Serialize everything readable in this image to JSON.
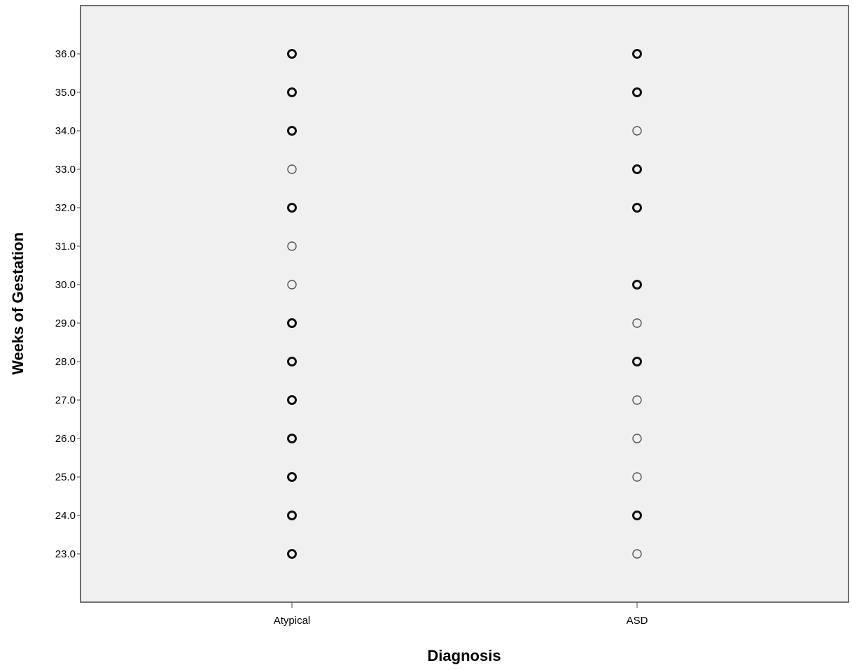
{
  "chart_data": {
    "type": "scatter",
    "title": "",
    "xlabel": "Diagnosis",
    "ylabel": "Weeks of Gestation",
    "categories": [
      "Atypical",
      "ASD"
    ],
    "ylim": [
      21.7,
      37.3
    ],
    "yticks": [
      "23.0",
      "24.0",
      "25.0",
      "26.0",
      "27.0",
      "28.0",
      "29.0",
      "30.0",
      "31.0",
      "32.0",
      "33.0",
      "34.0",
      "35.0",
      "36.0"
    ],
    "grid": false,
    "background_color": "#f0f0f0",
    "marker": "hollow-circle",
    "series": [
      {
        "category": "Atypical",
        "points": [
          {
            "y": 23,
            "multiple": true
          },
          {
            "y": 24,
            "multiple": true
          },
          {
            "y": 25,
            "multiple": true
          },
          {
            "y": 26,
            "multiple": true
          },
          {
            "y": 27,
            "multiple": true
          },
          {
            "y": 28,
            "multiple": true
          },
          {
            "y": 29,
            "multiple": true
          },
          {
            "y": 30,
            "multiple": false
          },
          {
            "y": 31,
            "multiple": false
          },
          {
            "y": 32,
            "multiple": true
          },
          {
            "y": 33,
            "multiple": false
          },
          {
            "y": 34,
            "multiple": true
          },
          {
            "y": 35,
            "multiple": true
          },
          {
            "y": 36,
            "multiple": true
          }
        ]
      },
      {
        "category": "ASD",
        "points": [
          {
            "y": 23,
            "multiple": false
          },
          {
            "y": 24,
            "multiple": true
          },
          {
            "y": 25,
            "multiple": false
          },
          {
            "y": 26,
            "multiple": false
          },
          {
            "y": 27,
            "multiple": false
          },
          {
            "y": 28,
            "multiple": true
          },
          {
            "y": 29,
            "multiple": false
          },
          {
            "y": 30,
            "multiple": true
          },
          {
            "y": 32,
            "multiple": true
          },
          {
            "y": 33,
            "multiple": true
          },
          {
            "y": 34,
            "multiple": false
          },
          {
            "y": 35,
            "multiple": true
          },
          {
            "y": 36,
            "multiple": true
          }
        ]
      }
    ]
  }
}
